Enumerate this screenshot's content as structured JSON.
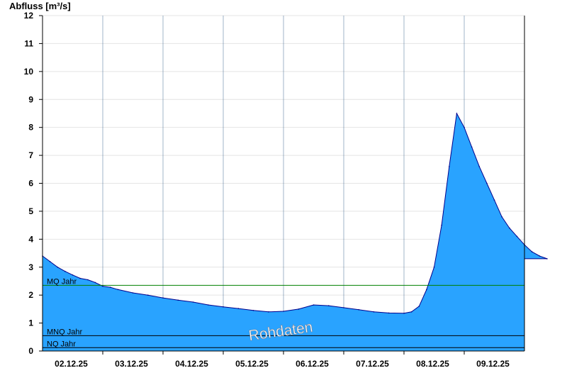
{
  "chart_data": {
    "type": "area",
    "ylabel": "Abfluss [m³/s]",
    "ylim": [
      0,
      12
    ],
    "yticks": [
      0,
      1,
      2,
      3,
      4,
      5,
      6,
      7,
      8,
      9,
      10,
      11,
      12
    ],
    "xlim": [
      "2025-12-01T12:00",
      "2025-12-09T12:00"
    ],
    "xticks": [
      {
        "t": "2025-12-02T00:00",
        "label": "02.12.25"
      },
      {
        "t": "2025-12-03T00:00",
        "label": "03.12.25"
      },
      {
        "t": "2025-12-04T00:00",
        "label": "04.12.25"
      },
      {
        "t": "2025-12-05T00:00",
        "label": "05.12.25"
      },
      {
        "t": "2025-12-06T00:00",
        "label": "06.12.25"
      },
      {
        "t": "2025-12-07T00:00",
        "label": "07.12.25"
      },
      {
        "t": "2025-12-08T00:00",
        "label": "08.12.25"
      },
      {
        "t": "2025-12-09T00:00",
        "label": "09.12.25"
      }
    ],
    "grid": true,
    "series": [
      {
        "color": "#29a3ff",
        "line_color": "#00008b",
        "points": [
          [
            "2025-12-01T12:00",
            3.4
          ],
          [
            "2025-12-01T15:00",
            3.2
          ],
          [
            "2025-12-01T18:00",
            3.0
          ],
          [
            "2025-12-01T21:00",
            2.85
          ],
          [
            "2025-12-02T00:00",
            2.72
          ],
          [
            "2025-12-02T03:00",
            2.6
          ],
          [
            "2025-12-02T06:00",
            2.55
          ],
          [
            "2025-12-02T09:00",
            2.45
          ],
          [
            "2025-12-02T12:00",
            2.32
          ],
          [
            "2025-12-02T15:00",
            2.28
          ],
          [
            "2025-12-02T18:00",
            2.2
          ],
          [
            "2025-12-03T00:00",
            2.08
          ],
          [
            "2025-12-03T06:00",
            2.0
          ],
          [
            "2025-12-03T12:00",
            1.9
          ],
          [
            "2025-12-03T18:00",
            1.82
          ],
          [
            "2025-12-04T00:00",
            1.75
          ],
          [
            "2025-12-04T06:00",
            1.65
          ],
          [
            "2025-12-04T12:00",
            1.58
          ],
          [
            "2025-12-04T18:00",
            1.52
          ],
          [
            "2025-12-05T00:00",
            1.45
          ],
          [
            "2025-12-05T06:00",
            1.4
          ],
          [
            "2025-12-05T12:00",
            1.42
          ],
          [
            "2025-12-05T18:00",
            1.5
          ],
          [
            "2025-12-06T00:00",
            1.65
          ],
          [
            "2025-12-06T06:00",
            1.62
          ],
          [
            "2025-12-06T12:00",
            1.55
          ],
          [
            "2025-12-06T18:00",
            1.48
          ],
          [
            "2025-12-07T00:00",
            1.4
          ],
          [
            "2025-12-07T06:00",
            1.36
          ],
          [
            "2025-12-07T12:00",
            1.35
          ],
          [
            "2025-12-07T15:00",
            1.4
          ],
          [
            "2025-12-07T18:00",
            1.6
          ],
          [
            "2025-12-07T21:00",
            2.2
          ],
          [
            "2025-12-08T00:00",
            3.0
          ],
          [
            "2025-12-08T03:00",
            4.5
          ],
          [
            "2025-12-08T06:00",
            6.6
          ],
          [
            "2025-12-08T09:00",
            8.5
          ],
          [
            "2025-12-08T12:00",
            8.0
          ],
          [
            "2025-12-08T15:00",
            7.3
          ],
          [
            "2025-12-08T18:00",
            6.6
          ],
          [
            "2025-12-08T21:00",
            6.0
          ],
          [
            "2025-12-09T00:00",
            5.4
          ],
          [
            "2025-12-09T03:00",
            4.8
          ],
          [
            "2025-12-09T06:00",
            4.4
          ],
          [
            "2025-12-09T09:00",
            4.1
          ],
          [
            "2025-12-09T12:00",
            3.8
          ],
          [
            "2025-12-09T15:00",
            3.55
          ],
          [
            "2025-12-09T18:00",
            3.4
          ],
          [
            "2025-12-09T21:00",
            3.3
          ]
        ]
      }
    ],
    "reference_lines": [
      {
        "label": "MQ Jahr",
        "value": 2.35,
        "color": "#008000"
      },
      {
        "label": "MNQ Jahr",
        "value": 0.55,
        "color": "#000000"
      },
      {
        "label": "NQ Jahr",
        "value": 0.12,
        "color": "#000000"
      }
    ],
    "watermark": "Rohdaten"
  }
}
